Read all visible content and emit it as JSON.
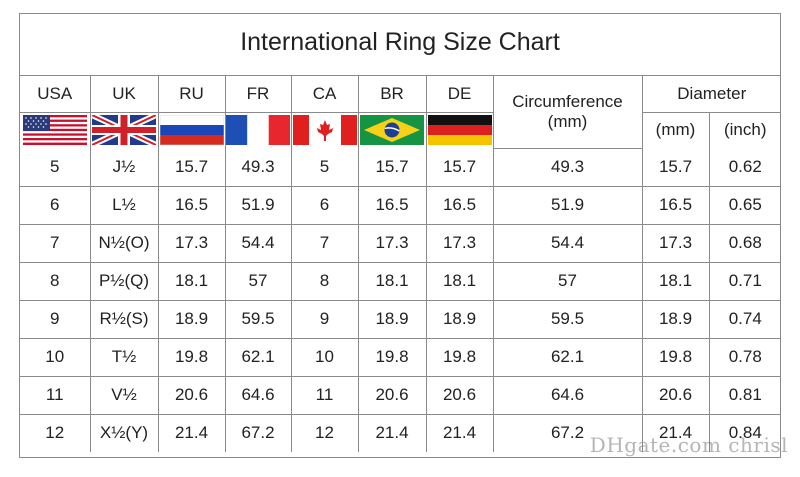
{
  "title": "International Ring Size Chart",
  "columns": {
    "usa": "USA",
    "uk": "UK",
    "ru": "RU",
    "fr": "FR",
    "ca": "CA",
    "br": "BR",
    "de": "DE",
    "circumference": "Circumference",
    "circumference_unit": "(mm)",
    "diameter": "Diameter",
    "diameter_mm": "(mm)",
    "diameter_inch": "(inch)"
  },
  "flags": [
    "usa-flag",
    "uk-flag",
    "russia-flag",
    "france-flag",
    "canada-flag",
    "brazil-flag",
    "germany-flag"
  ],
  "rows": [
    {
      "usa": "5",
      "uk": "J½",
      "ru": "15.7",
      "fr": "49.3",
      "ca": "5",
      "br": "15.7",
      "de": "15.7",
      "circ": "49.3",
      "dmm": "15.7",
      "din": "0.62"
    },
    {
      "usa": "6",
      "uk": "L½",
      "ru": "16.5",
      "fr": "51.9",
      "ca": "6",
      "br": "16.5",
      "de": "16.5",
      "circ": "51.9",
      "dmm": "16.5",
      "din": "0.65"
    },
    {
      "usa": "7",
      "uk": "N½(O)",
      "ru": "17.3",
      "fr": "54.4",
      "ca": "7",
      "br": "17.3",
      "de": "17.3",
      "circ": "54.4",
      "dmm": "17.3",
      "din": "0.68"
    },
    {
      "usa": "8",
      "uk": "P½(Q)",
      "ru": "18.1",
      "fr": "57",
      "ca": "8",
      "br": "18.1",
      "de": "18.1",
      "circ": "57",
      "dmm": "18.1",
      "din": "0.71"
    },
    {
      "usa": "9",
      "uk": "R½(S)",
      "ru": "18.9",
      "fr": "59.5",
      "ca": "9",
      "br": "18.9",
      "de": "18.9",
      "circ": "59.5",
      "dmm": "18.9",
      "din": "0.74"
    },
    {
      "usa": "10",
      "uk": "T½",
      "ru": "19.8",
      "fr": "62.1",
      "ca": "10",
      "br": "19.8",
      "de": "19.8",
      "circ": "62.1",
      "dmm": "19.8",
      "din": "0.78"
    },
    {
      "usa": "11",
      "uk": "V½",
      "ru": "20.6",
      "fr": "64.6",
      "ca": "11",
      "br": "20.6",
      "de": "20.6",
      "circ": "64.6",
      "dmm": "20.6",
      "din": "0.81"
    },
    {
      "usa": "12",
      "uk": "X½(Y)",
      "ru": "21.4",
      "fr": "67.2",
      "ca": "12",
      "br": "21.4",
      "de": "21.4",
      "circ": "67.2",
      "dmm": "21.4",
      "din": "0.84"
    }
  ],
  "watermark": "DHgate.com  chrisl",
  "colors": {
    "border": "#8a8a8a",
    "usa_red": "#c8102e",
    "usa_blue": "#2b3a7a",
    "uk_blue": "#1f3c8c",
    "uk_red": "#d0202a",
    "ru_blue": "#1c45b8",
    "ru_red": "#d52b1e",
    "fr_blue": "#1e4fb5",
    "fr_red": "#e8262e",
    "ca_red": "#e0201e",
    "br_green": "#159443",
    "br_yellow": "#f7d117",
    "br_blue": "#1c3f94",
    "de_black": "#111111",
    "de_red": "#dd1f1f",
    "de_gold": "#f5c400"
  }
}
